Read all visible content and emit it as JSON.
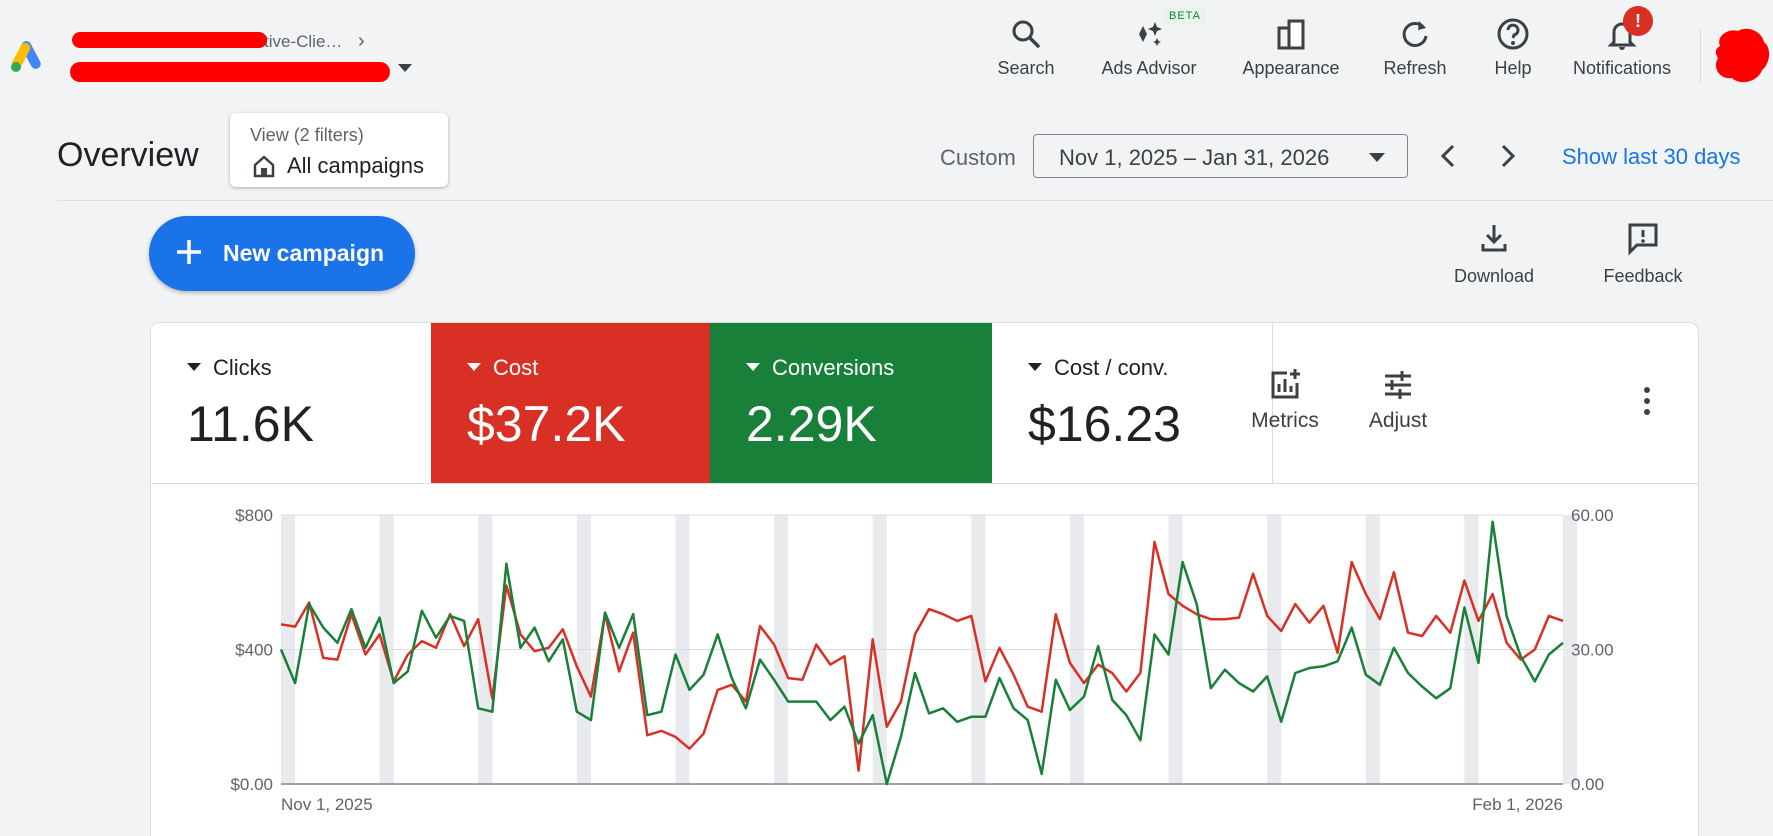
{
  "header": {
    "account_line1": "tive-Clie…",
    "toolbar": [
      {
        "label": "Search",
        "icon": "search-icon"
      },
      {
        "label": "Ads Advisor",
        "icon": "sparkle-icon"
      },
      {
        "label": "Appearance",
        "icon": "appearance-icon"
      },
      {
        "label": "Refresh",
        "icon": "refresh-icon"
      },
      {
        "label": "Help",
        "icon": "help-icon"
      },
      {
        "label": "Notifications",
        "icon": "bell-icon"
      }
    ],
    "beta_badge": "BETA",
    "notification_badge": "!"
  },
  "overview": {
    "title": "Overview",
    "filter_view": "View (2 filters)",
    "filter_value": "All campaigns",
    "date_preset": "Custom",
    "date_range": "Nov 1, 2025 – Jan 31, 2026",
    "show_last": "Show last 30 days"
  },
  "actions": {
    "new_campaign": "New campaign",
    "download": "Download",
    "feedback": "Feedback"
  },
  "metrics": [
    {
      "label": "Clicks",
      "value": "11.6K",
      "color": "#ffffff"
    },
    {
      "label": "Cost",
      "value": "$37.2K",
      "color": "#d93025"
    },
    {
      "label": "Conversions",
      "value": "2.29K",
      "color": "#188038"
    },
    {
      "label": "Cost / conv.",
      "value": "$16.23",
      "color": "#ffffff"
    }
  ],
  "card_tools": {
    "metrics": "Metrics",
    "adjust": "Adjust"
  },
  "chart_data": {
    "type": "line",
    "x_start": "Nov 1, 2025",
    "x_end": "Feb 1, 2026",
    "left_axis": {
      "ticks": [
        "$800",
        "$400",
        "$0.00"
      ],
      "range": [
        0,
        800
      ]
    },
    "right_axis": {
      "ticks": [
        "60.00",
        "30.00",
        "0.00"
      ],
      "range": [
        0,
        60
      ]
    },
    "series": [
      {
        "name": "Cost",
        "axis": "left",
        "color": "#d93025",
        "values": [
          475,
          468,
          540,
          375,
          370,
          505,
          385,
          445,
          305,
          385,
          425,
          405,
          505,
          410,
          490,
          255,
          590,
          445,
          395,
          405,
          460,
          350,
          260,
          505,
          335,
          450,
          145,
          158,
          140,
          105,
          150,
          280,
          295,
          245,
          470,
          415,
          315,
          310,
          415,
          355,
          380,
          40,
          430,
          170,
          245,
          445,
          520,
          505,
          485,
          500,
          305,
          405,
          325,
          230,
          215,
          505,
          360,
          300,
          355,
          330,
          275,
          330,
          720,
          565,
          530,
          505,
          490,
          490,
          495,
          625,
          500,
          455,
          535,
          480,
          530,
          390,
          660,
          565,
          490,
          630,
          450,
          440,
          500,
          450,
          605,
          485,
          565,
          420,
          370,
          400,
          500,
          485
        ]
      },
      {
        "name": "Conversions",
        "axis": "left",
        "color": "#188038",
        "values": [
          400,
          300,
          535,
          465,
          420,
          520,
          405,
          495,
          300,
          335,
          515,
          435,
          500,
          485,
          225,
          215,
          655,
          405,
          465,
          365,
          430,
          215,
          190,
          510,
          405,
          505,
          205,
          215,
          385,
          280,
          325,
          445,
          315,
          225,
          370,
          310,
          245,
          245,
          245,
          190,
          230,
          120,
          205,
          0,
          140,
          330,
          210,
          225,
          185,
          200,
          200,
          315,
          225,
          190,
          30,
          310,
          220,
          260,
          410,
          250,
          205,
          130,
          445,
          385,
          660,
          535,
          285,
          340,
          300,
          275,
          320,
          185,
          330,
          345,
          350,
          365,
          465,
          325,
          295,
          405,
          330,
          290,
          255,
          285,
          525,
          360,
          780,
          500,
          380,
          305,
          385,
          420
        ]
      }
    ]
  }
}
